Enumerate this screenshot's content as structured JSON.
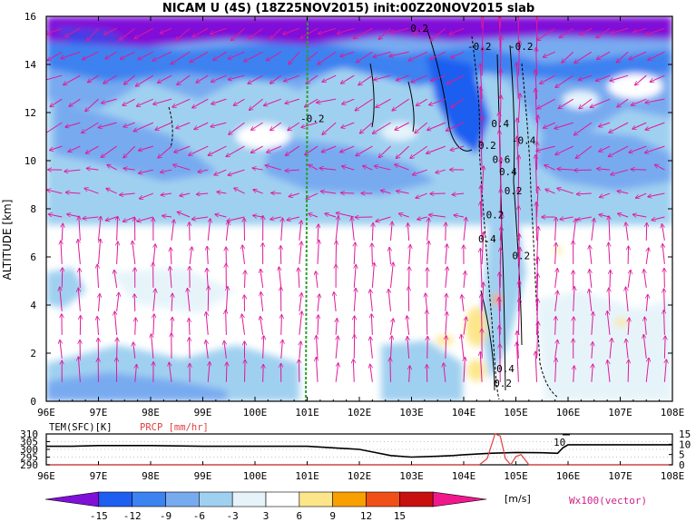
{
  "title": "NICAM U (4S) (18Z25NOV2015) init:00Z20NOV2015 slab",
  "chart_data": [
    {
      "type": "heatmap",
      "ylabel": "ALTITUDE [km]",
      "x_ticks": [
        "96E",
        "97E",
        "98E",
        "99E",
        "100E",
        "101E",
        "102E",
        "103E",
        "104E",
        "105E",
        "106E",
        "107E",
        "108E"
      ],
      "xlim": [
        96,
        108
      ],
      "y_ticks": [
        "0",
        "2",
        "4",
        "6",
        "8",
        "10",
        "12",
        "14",
        "16"
      ],
      "ylim": [
        0,
        16
      ],
      "contour_labels": [
        {
          "text": "0.2",
          "lon": 103.15,
          "alt": 15.35
        },
        {
          "text": "-0.2",
          "lon": 104.3,
          "alt": 14.6
        },
        {
          "text": "-0.2",
          "lon": 105.1,
          "alt": 14.6
        },
        {
          "text": "-0.2",
          "lon": 101.1,
          "alt": 11.6
        },
        {
          "text": "0.4",
          "lon": 104.7,
          "alt": 11.4
        },
        {
          "text": "0.2",
          "lon": 104.45,
          "alt": 10.5
        },
        {
          "text": "-0.4",
          "lon": 105.15,
          "alt": 10.7
        },
        {
          "text": "0.6",
          "lon": 104.72,
          "alt": 9.9
        },
        {
          "text": "0.4",
          "lon": 104.85,
          "alt": 9.4
        },
        {
          "text": "0.2",
          "lon": 104.95,
          "alt": 8.6
        },
        {
          "text": "0.2",
          "lon": 104.6,
          "alt": 7.6
        },
        {
          "text": "0.4",
          "lon": 104.45,
          "alt": 6.6
        },
        {
          "text": "0.2",
          "lon": 105.1,
          "alt": 5.9
        },
        {
          "text": "0.4",
          "lon": 104.8,
          "alt": 1.2
        },
        {
          "text": "0.2",
          "lon": 104.75,
          "alt": 0.6
        }
      ]
    },
    {
      "type": "line",
      "left_axis_label": "TEM(SFC)[K]",
      "right_axis_label": "PRCP [mm/hr]",
      "left_ticks": [
        "310",
        "305",
        "300",
        "295",
        "290"
      ],
      "right_ticks": [
        "15",
        "10",
        "5",
        "0"
      ],
      "x_ticks": [
        "96E",
        "97E",
        "98E",
        "99E",
        "100E",
        "101E",
        "102E",
        "103E",
        "104E",
        "105E",
        "106E",
        "107E",
        "108E"
      ],
      "annotation": "10",
      "series": [
        {
          "name": "TEM(SFC)[K]",
          "color": "#000000",
          "x": [
            96,
            96.5,
            97,
            98,
            99,
            100,
            101,
            101.5,
            102,
            102.3,
            102.6,
            103,
            103.5,
            103.8,
            104,
            104.5,
            105,
            105.5,
            105.8,
            105.9,
            106,
            106.5,
            107,
            108
          ],
          "values": [
            302,
            302,
            302.5,
            302.5,
            302,
            302,
            302,
            301,
            300,
            298,
            296,
            295,
            295.5,
            296,
            296.5,
            297.5,
            298,
            297.8,
            297.5,
            301,
            303,
            303,
            303,
            303
          ]
        },
        {
          "name": "PRCP [mm/hr]",
          "color": "#e04040",
          "x": [
            96,
            104.3,
            104.45,
            104.6,
            104.7,
            104.8,
            104.9,
            105.0,
            105.1,
            105.25,
            108
          ],
          "values": [
            0,
            0,
            3,
            15,
            14,
            3,
            0,
            4,
            5,
            0,
            0
          ]
        }
      ]
    },
    {
      "type": "colorbar",
      "unit": "[m/s]",
      "tick_labels": [
        "-15",
        "-12",
        "-9",
        "-6",
        "-3",
        "3",
        "6",
        "9",
        "12",
        "15"
      ],
      "colors": [
        "#8010d8",
        "#1e5ef0",
        "#3c82f0",
        "#78aaf0",
        "#a0d0f0",
        "#e6f4fa",
        "#ffffff",
        "#fde68a",
        "#f8a000",
        "#f05018",
        "#c81010",
        "#f0188c"
      ],
      "vector_note": "Wx100(vector)"
    }
  ]
}
